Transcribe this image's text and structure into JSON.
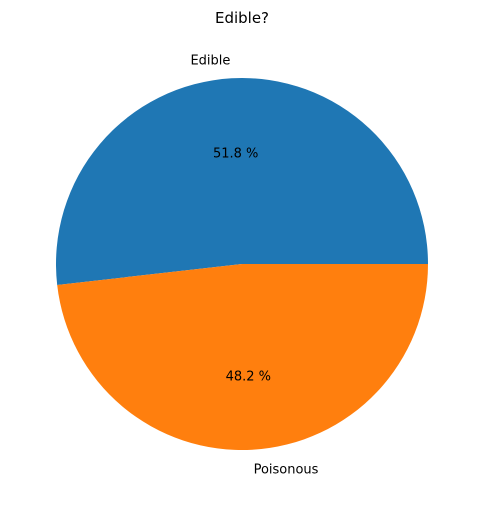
{
  "chart_data": {
    "type": "pie",
    "title": "Edible?",
    "slices": [
      {
        "label": "Edible",
        "value": 51.8,
        "pct_label": "51.8 %",
        "color": "#1f77b4"
      },
      {
        "label": "Poisonous",
        "value": 48.2,
        "pct_label": "48.2 %",
        "color": "#ff7f0e"
      }
    ],
    "start_angle_deg": 0,
    "direction": "counterclockwise"
  }
}
